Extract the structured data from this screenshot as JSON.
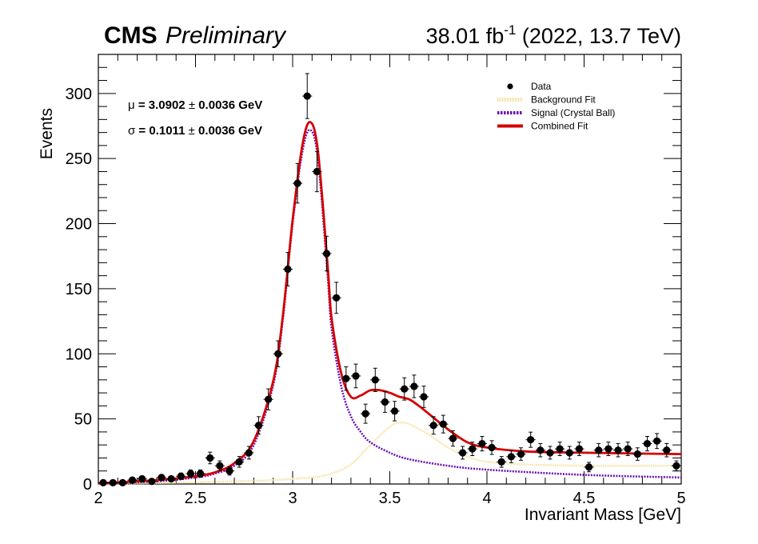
{
  "header": {
    "experiment": "CMS",
    "status": "Preliminary",
    "lumi_value": "38.01 fb",
    "lumi_exp": "-1",
    "lumi_tail": " (2022, 13.7 TeV)"
  },
  "annotations": {
    "mu_symbol": "μ",
    "mu_text": " = 3.0902 ",
    "mu_pm": "±",
    "mu_err": " 0.0036 GeV",
    "sigma_symbol": "σ",
    "sigma_text": " = 0.1011 ",
    "sigma_pm": "±",
    "sigma_err": " 0.0036 GeV"
  },
  "chart_data": {
    "type": "scatter",
    "xlabel": "Invariant Mass [GeV]",
    "ylabel": "Events",
    "xlim": [
      2,
      5
    ],
    "ylim": [
      0,
      330
    ],
    "x_ticks": [
      2,
      2.5,
      3,
      3.5,
      4,
      4.5,
      5
    ],
    "x_tick_labels": [
      "2",
      "2.5",
      "3",
      "3.5",
      "4",
      "4.5",
      "5"
    ],
    "y_ticks": [
      0,
      50,
      100,
      150,
      200,
      250,
      300
    ],
    "y_tick_labels": [
      "0",
      "50",
      "100",
      "150",
      "200",
      "250",
      "300"
    ],
    "legend_position": "top-right",
    "legend": [
      {
        "label": "Data",
        "style": "marker"
      },
      {
        "label": "Background Fit",
        "style": "dotted-yellow"
      },
      {
        "label": "Signal (Crystal Ball)",
        "style": "dotted-purple"
      },
      {
        "label": "Combined Fit",
        "style": "solid-red"
      }
    ],
    "colors": {
      "data": "#000000",
      "background": "#f5de92",
      "signal": "#6a0dad",
      "combined": "#d40000"
    },
    "data_points": [
      {
        "x": 2.025,
        "y": 1
      },
      {
        "x": 2.075,
        "y": 1
      },
      {
        "x": 2.125,
        "y": 1
      },
      {
        "x": 2.175,
        "y": 3
      },
      {
        "x": 2.225,
        "y": 4
      },
      {
        "x": 2.275,
        "y": 2
      },
      {
        "x": 2.325,
        "y": 5
      },
      {
        "x": 2.375,
        "y": 4
      },
      {
        "x": 2.425,
        "y": 6
      },
      {
        "x": 2.475,
        "y": 8
      },
      {
        "x": 2.525,
        "y": 8
      },
      {
        "x": 2.575,
        "y": 20
      },
      {
        "x": 2.625,
        "y": 14
      },
      {
        "x": 2.675,
        "y": 10
      },
      {
        "x": 2.725,
        "y": 17
      },
      {
        "x": 2.775,
        "y": 24
      },
      {
        "x": 2.825,
        "y": 45
      },
      {
        "x": 2.875,
        "y": 65
      },
      {
        "x": 2.925,
        "y": 100
      },
      {
        "x": 2.975,
        "y": 165
      },
      {
        "x": 3.025,
        "y": 231
      },
      {
        "x": 3.075,
        "y": 298
      },
      {
        "x": 3.125,
        "y": 240
      },
      {
        "x": 3.175,
        "y": 177
      },
      {
        "x": 3.225,
        "y": 143
      },
      {
        "x": 3.275,
        "y": 81
      },
      {
        "x": 3.325,
        "y": 83
      },
      {
        "x": 3.375,
        "y": 54
      },
      {
        "x": 3.425,
        "y": 80
      },
      {
        "x": 3.475,
        "y": 63
      },
      {
        "x": 3.525,
        "y": 56
      },
      {
        "x": 3.575,
        "y": 73
      },
      {
        "x": 3.625,
        "y": 75
      },
      {
        "x": 3.675,
        "y": 67
      },
      {
        "x": 3.725,
        "y": 45
      },
      {
        "x": 3.775,
        "y": 46
      },
      {
        "x": 3.825,
        "y": 35
      },
      {
        "x": 3.875,
        "y": 24
      },
      {
        "x": 3.925,
        "y": 27
      },
      {
        "x": 3.975,
        "y": 31
      },
      {
        "x": 4.025,
        "y": 28
      },
      {
        "x": 4.075,
        "y": 17
      },
      {
        "x": 4.125,
        "y": 21
      },
      {
        "x": 4.175,
        "y": 23
      },
      {
        "x": 4.225,
        "y": 34
      },
      {
        "x": 4.275,
        "y": 26
      },
      {
        "x": 4.325,
        "y": 24
      },
      {
        "x": 4.375,
        "y": 27
      },
      {
        "x": 4.425,
        "y": 24
      },
      {
        "x": 4.475,
        "y": 27
      },
      {
        "x": 4.525,
        "y": 13
      },
      {
        "x": 4.575,
        "y": 26
      },
      {
        "x": 4.625,
        "y": 27
      },
      {
        "x": 4.675,
        "y": 26
      },
      {
        "x": 4.725,
        "y": 27
      },
      {
        "x": 4.775,
        "y": 23
      },
      {
        "x": 4.825,
        "y": 31
      },
      {
        "x": 4.875,
        "y": 33
      },
      {
        "x": 4.925,
        "y": 26
      },
      {
        "x": 4.975,
        "y": 14
      }
    ],
    "background_fit": {
      "x": [
        2.0,
        2.4,
        2.7,
        2.9,
        3.0,
        3.1,
        3.2,
        3.3,
        3.4,
        3.5,
        3.55,
        3.6,
        3.7,
        3.8,
        3.9,
        4.0,
        4.2,
        4.5,
        4.8,
        5.0
      ],
      "y": [
        0,
        1,
        2,
        3,
        4,
        5,
        8,
        15,
        30,
        44,
        47,
        46,
        38,
        28,
        21,
        17,
        15,
        14,
        14,
        14
      ]
    },
    "signal_fit": {
      "x": [
        2.0,
        2.3,
        2.5,
        2.6,
        2.7,
        2.8,
        2.9,
        2.95,
        3.0,
        3.05,
        3.09,
        3.13,
        3.18,
        3.2,
        3.25,
        3.3,
        3.35,
        3.4,
        3.5,
        3.6,
        3.8,
        4.0,
        4.5,
        5.0
      ],
      "y": [
        0.5,
        2,
        5,
        8,
        14,
        30,
        76,
        127,
        200,
        255,
        272,
        250,
        160,
        120,
        75,
        52,
        40,
        32,
        24,
        19,
        14,
        11,
        7,
        5
      ]
    },
    "combined_fit": {
      "x": [
        2.0,
        2.3,
        2.5,
        2.6,
        2.7,
        2.8,
        2.9,
        2.95,
        3.0,
        3.05,
        3.09,
        3.13,
        3.18,
        3.2,
        3.25,
        3.3,
        3.35,
        3.4,
        3.45,
        3.5,
        3.55,
        3.6,
        3.65,
        3.7,
        3.8,
        3.9,
        4.0,
        4.2,
        4.5,
        5.0
      ],
      "y": [
        0.5,
        3,
        6,
        9,
        16,
        33,
        79,
        130,
        203,
        260,
        278,
        256,
        168,
        128,
        85,
        67,
        68,
        72,
        72,
        70,
        67,
        65,
        60,
        54,
        42,
        32,
        28,
        25,
        24,
        23
      ]
    }
  }
}
